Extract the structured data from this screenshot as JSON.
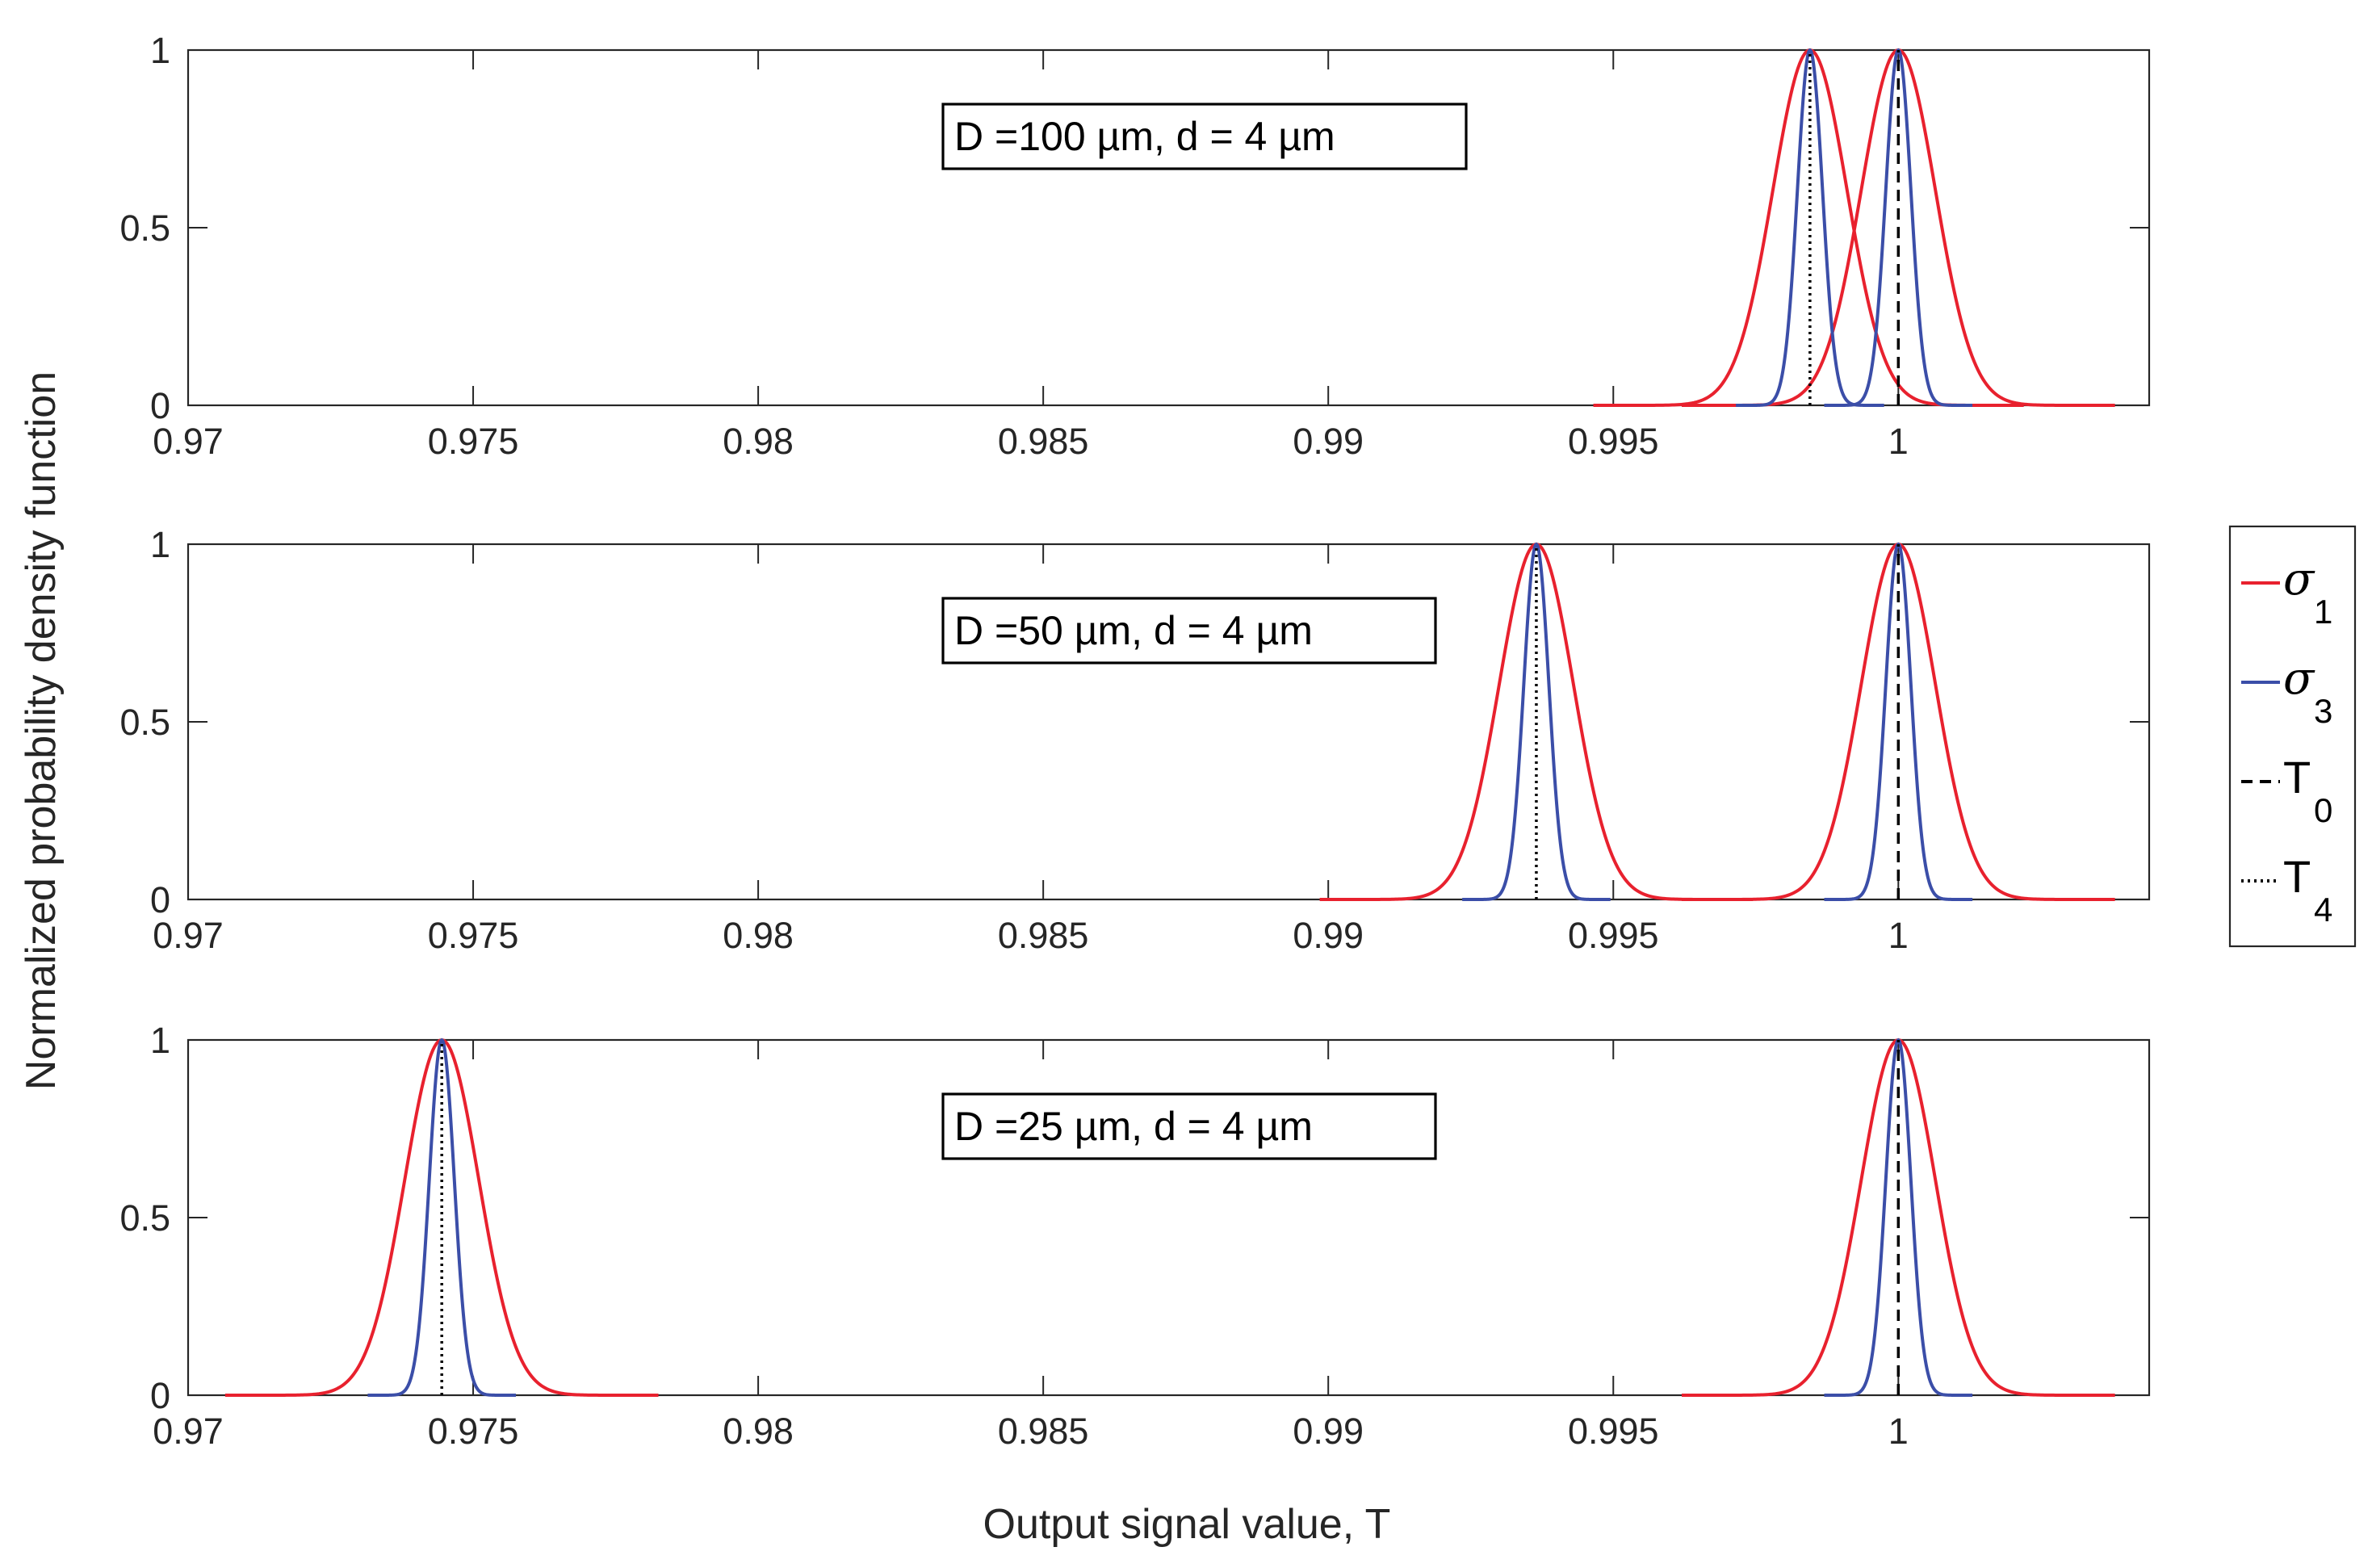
{
  "chart_data": {
    "type": "line",
    "xlabel": "Output signal value, T",
    "ylabel": "Normalized probability density function",
    "xlim": [
      0.97,
      1.0044
    ],
    "ylim": [
      0,
      1
    ],
    "x_ticks": [
      0.97,
      0.975,
      0.98,
      0.985,
      0.99,
      0.995,
      1.0
    ],
    "x_tick_labels": [
      "0.97",
      "0.975",
      "0.98",
      "0.985",
      "0.99",
      "0.995",
      "1"
    ],
    "y_ticks": [
      0,
      0.5,
      1
    ],
    "y_tick_labels": [
      "0",
      "0.5",
      "1"
    ],
    "legend": {
      "position": "right",
      "entries": [
        {
          "symbol": "σ",
          "sub": "1",
          "color": "#e8212e",
          "style": "solid"
        },
        {
          "symbol": "σ",
          "sub": "3",
          "color": "#3b4ea8",
          "style": "solid"
        },
        {
          "symbol": "T",
          "sub": "0",
          "color": "#000000",
          "style": "dashed"
        },
        {
          "symbol": "T",
          "sub": "4",
          "color": "#000000",
          "style": "dotted"
        }
      ]
    },
    "panels": [
      {
        "annotation": "D =100 µm, d = 4 µm",
        "series": [
          {
            "name": "σ1 (T4)",
            "color": "#e8212e",
            "mean": 0.99845,
            "sigma": 0.00065,
            "x_range": [
              0.99465,
              1.0022
            ]
          },
          {
            "name": "σ1 (T0)",
            "color": "#e8212e",
            "mean": 1.0,
            "sigma": 0.00065,
            "x_range": [
              0.9962,
              1.0038
            ]
          },
          {
            "name": "σ3 (T4)",
            "color": "#3b4ea8",
            "mean": 0.99845,
            "sigma": 0.00022,
            "x_range": [
              0.99715,
              0.99975
            ]
          },
          {
            "name": "σ3 (T0)",
            "color": "#3b4ea8",
            "mean": 1.0,
            "sigma": 0.00022,
            "x_range": [
              0.9987,
              1.0013
            ]
          }
        ],
        "T0": 1.0,
        "T4": 0.99845
      },
      {
        "annotation": "D =50 µm, d = 4 µm",
        "series": [
          {
            "name": "σ1 (T4)",
            "color": "#e8212e",
            "mean": 0.99365,
            "sigma": 0.00065,
            "x_range": [
              0.98985,
              0.99745
            ]
          },
          {
            "name": "σ1 (T0)",
            "color": "#e8212e",
            "mean": 1.0,
            "sigma": 0.00065,
            "x_range": [
              0.9962,
              1.0038
            ]
          },
          {
            "name": "σ3 (T4)",
            "color": "#3b4ea8",
            "mean": 0.99365,
            "sigma": 0.00022,
            "x_range": [
              0.99235,
              0.99495
            ]
          },
          {
            "name": "σ3 (T0)",
            "color": "#3b4ea8",
            "mean": 1.0,
            "sigma": 0.00022,
            "x_range": [
              0.9987,
              1.0013
            ]
          }
        ],
        "T0": 1.0,
        "T4": 0.99365
      },
      {
        "annotation": "D =25 µm, d = 4 µm",
        "series": [
          {
            "name": "σ1 (T4)",
            "color": "#e8212e",
            "mean": 0.97445,
            "sigma": 0.00065,
            "x_range": [
              0.97065,
              0.97825
            ]
          },
          {
            "name": "σ1 (T0)",
            "color": "#e8212e",
            "mean": 1.0,
            "sigma": 0.00065,
            "x_range": [
              0.9962,
              1.0038
            ]
          },
          {
            "name": "σ3 (T4)",
            "color": "#3b4ea8",
            "mean": 0.97445,
            "sigma": 0.00022,
            "x_range": [
              0.97315,
              0.97575
            ]
          },
          {
            "name": "σ3 (T0)",
            "color": "#3b4ea8",
            "mean": 1.0,
            "sigma": 0.00022,
            "x_range": [
              0.9987,
              1.0013
            ]
          }
        ],
        "T0": 1.0,
        "T4": 0.97445
      }
    ]
  }
}
